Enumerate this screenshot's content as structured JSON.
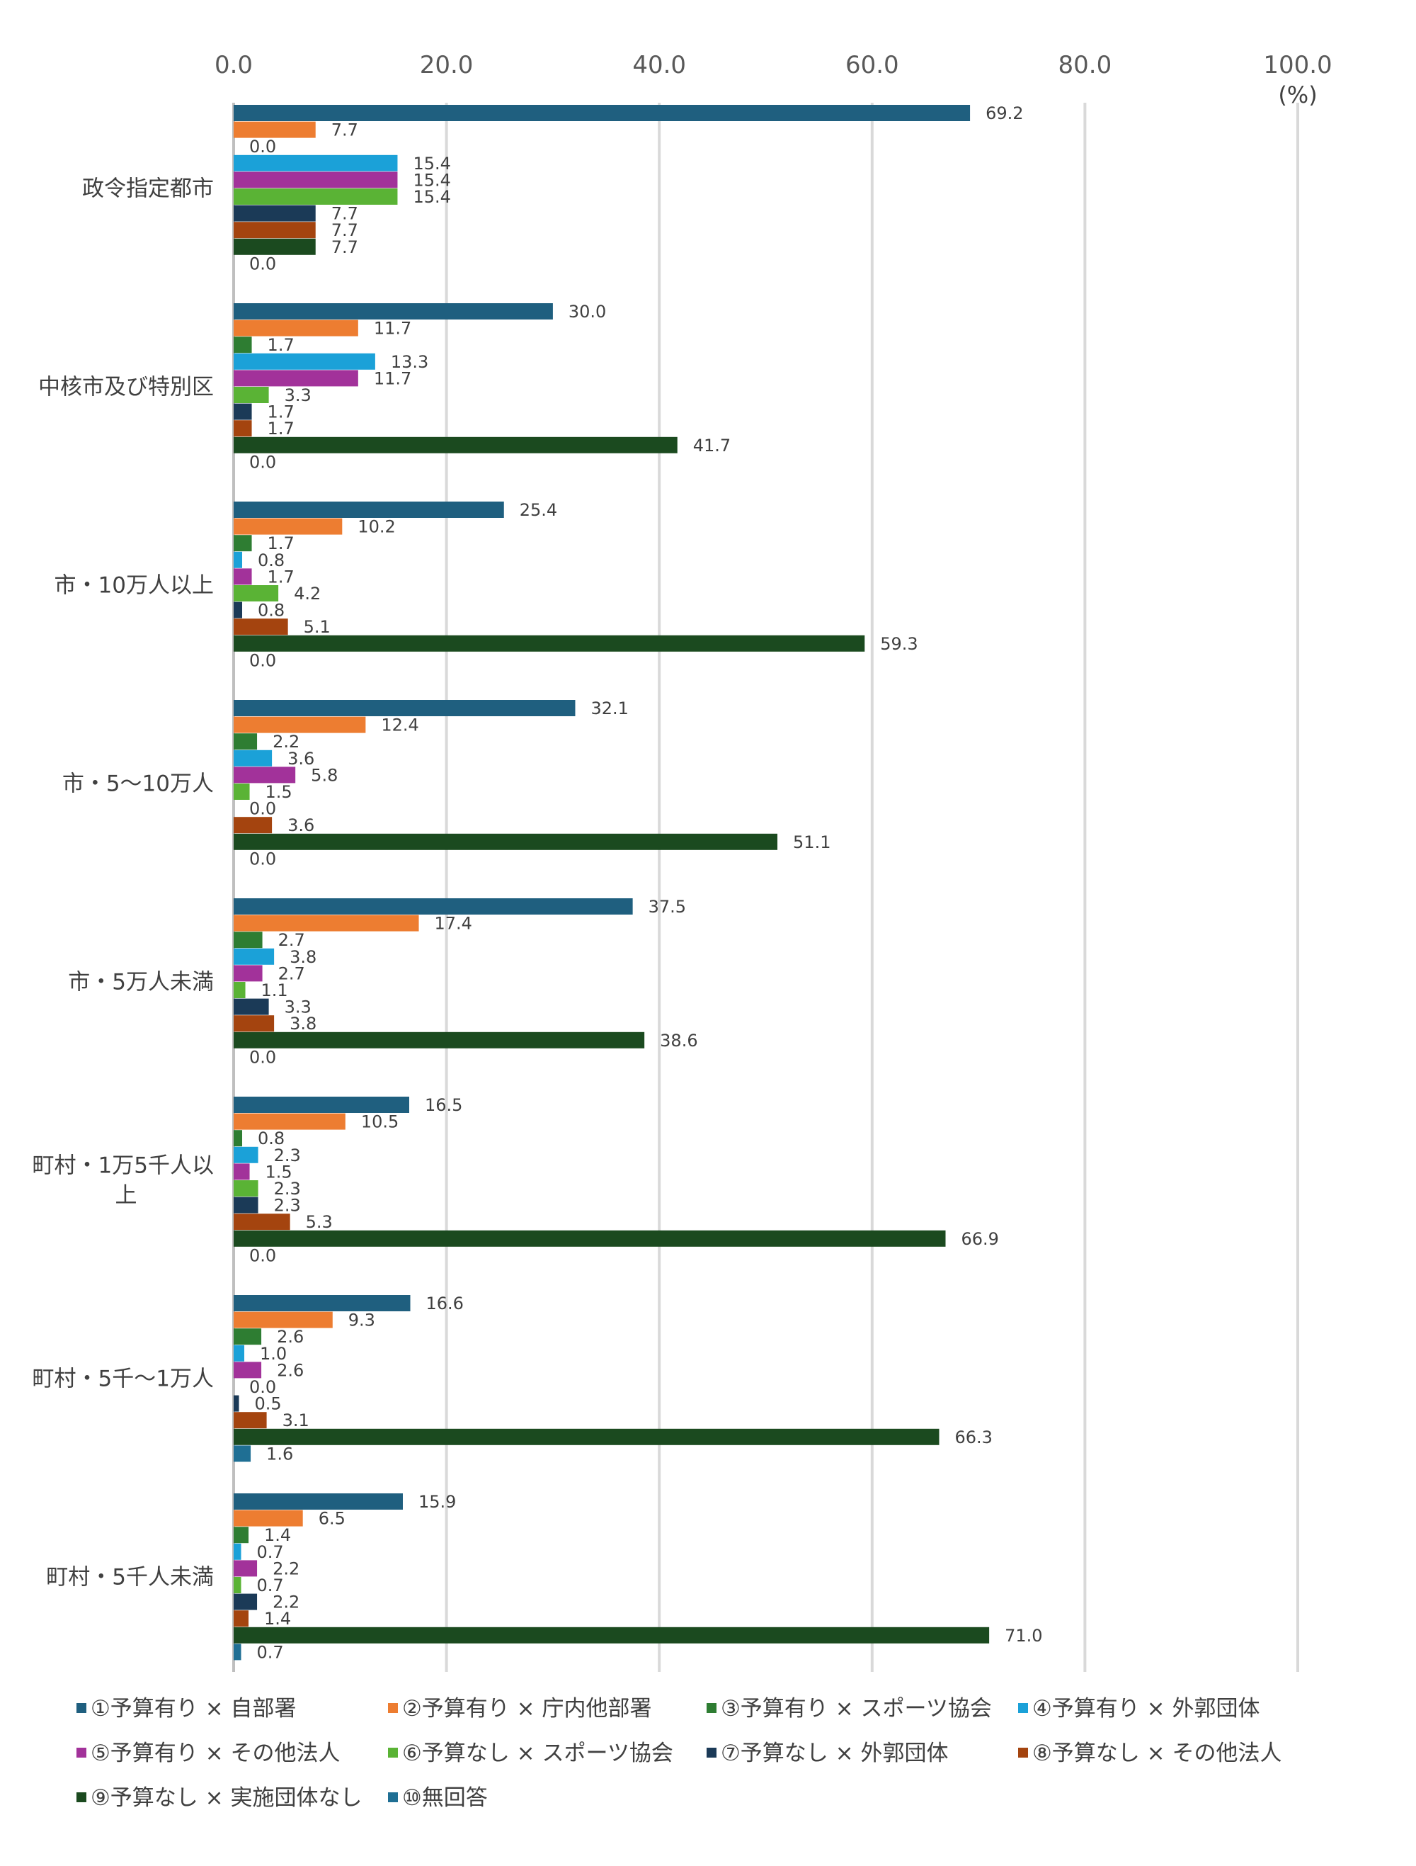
{
  "chart_data": {
    "type": "bar",
    "orientation": "horizontal",
    "unit_label": "(%)",
    "xlim": [
      0,
      100
    ],
    "x_ticks": [
      "0.0",
      "20.0",
      "40.0",
      "60.0",
      "80.0",
      "100.0"
    ],
    "grid": true,
    "legend_position": "bottom",
    "categories": [
      [
        "政令指定都市"
      ],
      [
        "中核市及び特別区"
      ],
      [
        "市・10万人以上"
      ],
      [
        "市・5～10万人"
      ],
      [
        "市・5万人未満"
      ],
      [
        "町村・1万5千人以",
        "上"
      ],
      [
        "町村・5千～1万人"
      ],
      [
        "町村・5千人未満"
      ]
    ],
    "series": [
      {
        "name": "①予算有り × 自部署",
        "color": "#1f5f7f",
        "values": [
          69.2,
          30.0,
          25.4,
          32.1,
          37.5,
          16.5,
          16.6,
          15.9
        ]
      },
      {
        "name": "②予算有り × 庁内他部署",
        "color": "#ed7d31",
        "values": [
          7.7,
          11.7,
          10.2,
          12.4,
          17.4,
          10.5,
          9.3,
          6.5
        ]
      },
      {
        "name": "③予算有り × スポーツ協会",
        "color": "#2e7d32",
        "values": [
          0.0,
          1.7,
          1.7,
          2.2,
          2.7,
          0.8,
          2.6,
          1.4
        ]
      },
      {
        "name": "④予算有り × 外郭団体",
        "color": "#1ba1d8",
        "values": [
          15.4,
          13.3,
          0.8,
          3.6,
          3.8,
          2.3,
          1.0,
          0.7
        ]
      },
      {
        "name": "⑤予算有り × その他法人",
        "color": "#a2329a",
        "values": [
          15.4,
          11.7,
          1.7,
          5.8,
          2.7,
          1.5,
          2.6,
          2.2
        ]
      },
      {
        "name": "⑥予算なし × スポーツ協会",
        "color": "#5ab335",
        "values": [
          15.4,
          3.3,
          4.2,
          1.5,
          1.1,
          2.3,
          0.0,
          0.7
        ]
      },
      {
        "name": "⑦予算なし × 外郭団体",
        "color": "#1b3a57",
        "values": [
          7.7,
          1.7,
          0.8,
          0.0,
          3.3,
          2.3,
          0.5,
          2.2
        ]
      },
      {
        "name": "⑧予算なし × その他法人",
        "color": "#a4440f",
        "values": [
          7.7,
          1.7,
          5.1,
          3.6,
          3.8,
          5.3,
          3.1,
          1.4
        ]
      },
      {
        "name": "⑨予算なし × 実施団体なし",
        "color": "#1b4a1f",
        "values": [
          7.7,
          41.7,
          59.3,
          51.1,
          38.6,
          66.9,
          66.3,
          71.0
        ]
      },
      {
        "name": "⑩無回答",
        "color": "#1f6f94",
        "values": [
          0.0,
          0.0,
          0.0,
          0.0,
          0.0,
          0.0,
          1.6,
          0.7
        ]
      }
    ]
  }
}
